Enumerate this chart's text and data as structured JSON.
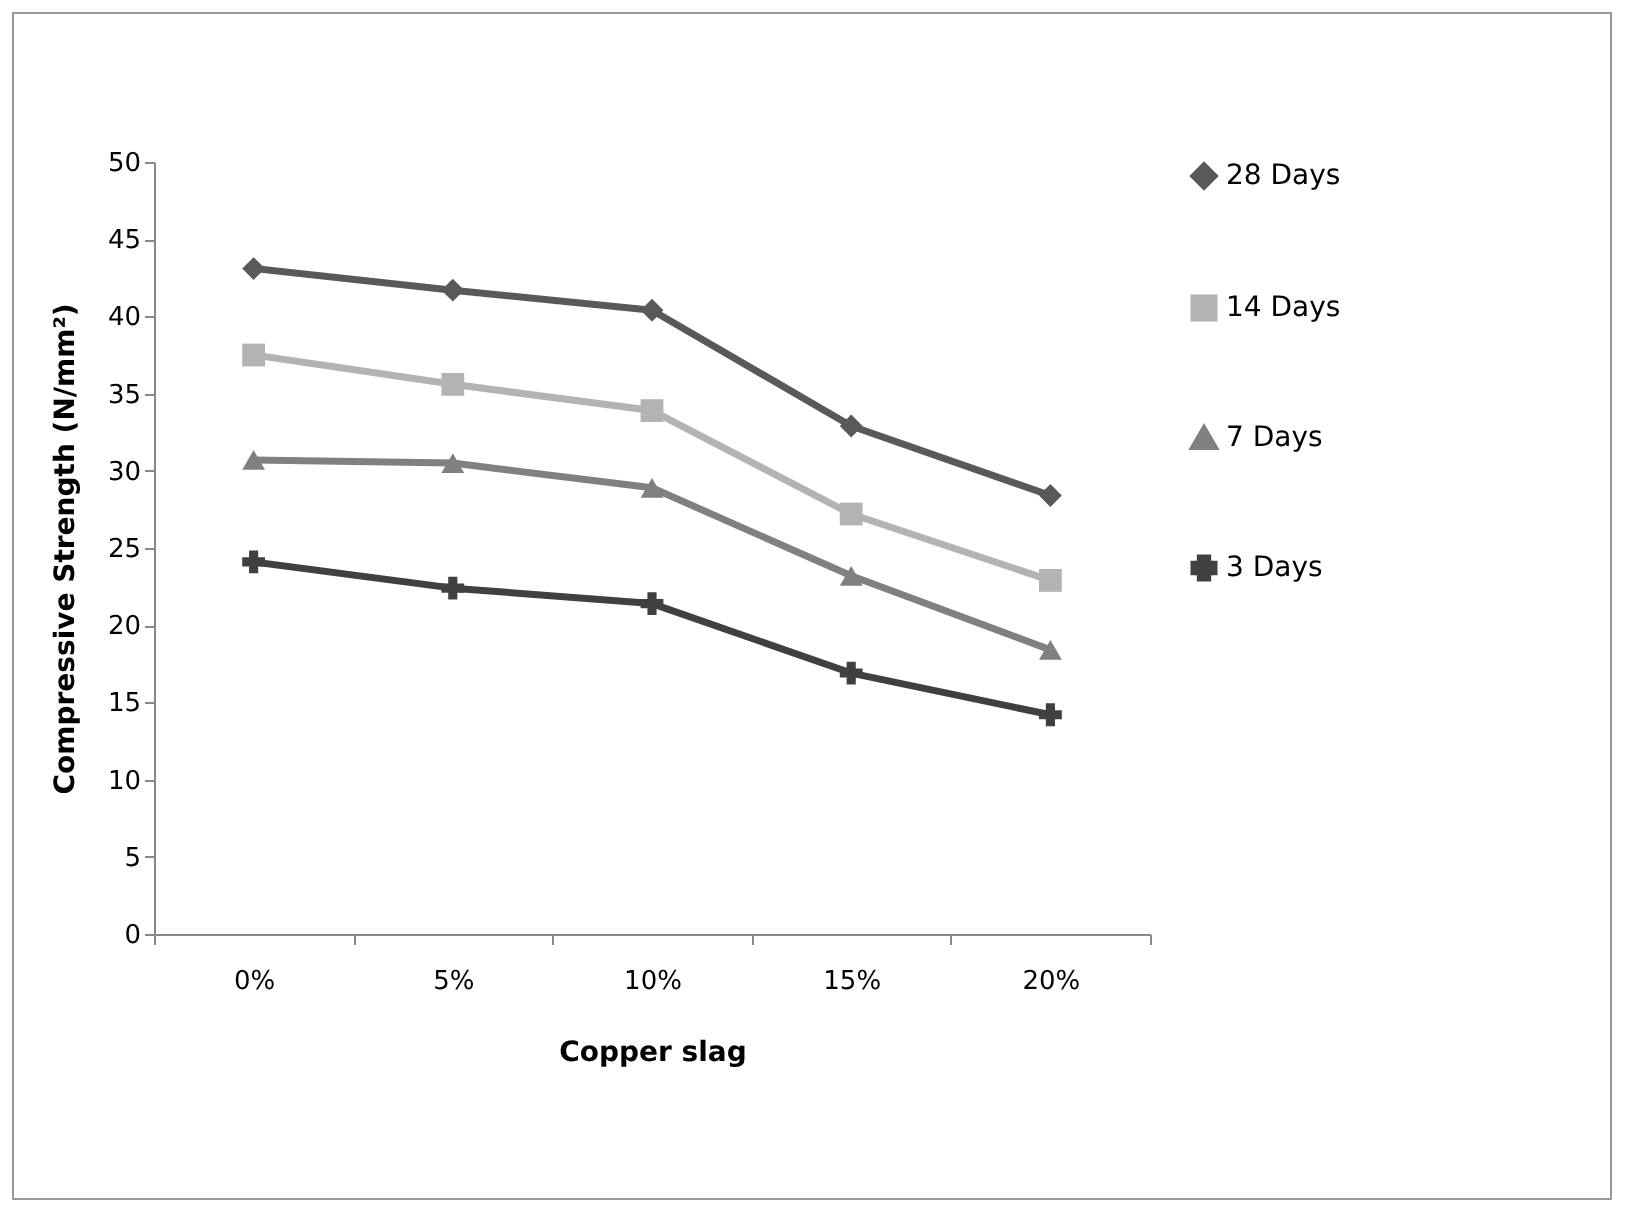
{
  "chart_data": {
    "type": "line",
    "xlabel": "Copper slag",
    "ylabel": "Compressive Strength (N/mm²)",
    "categories": [
      "0%",
      "5%",
      "10%",
      "15%",
      "20%"
    ],
    "series": [
      {
        "name": "28 Days",
        "color": "#595959",
        "marker": "diamond",
        "values": [
          43.1,
          41.7,
          40.4,
          32.9,
          28.4
        ]
      },
      {
        "name": "14 Days",
        "color": "#b3b3b3",
        "marker": "square",
        "values": [
          37.5,
          35.6,
          33.9,
          27.2,
          22.9
        ]
      },
      {
        "name": "7 Days",
        "color": "#808080",
        "marker": "triangle",
        "values": [
          30.7,
          30.5,
          28.9,
          23.2,
          18.4
        ]
      },
      {
        "name": "3 Days",
        "color": "#404040",
        "marker": "cross",
        "values": [
          24.1,
          22.4,
          21.4,
          16.9,
          14.2
        ]
      }
    ],
    "ylim": [
      0,
      50
    ],
    "yticks": [
      0,
      5,
      10,
      15,
      20,
      25,
      30,
      35,
      40,
      45,
      50
    ],
    "grid": false,
    "legend": "right"
  }
}
